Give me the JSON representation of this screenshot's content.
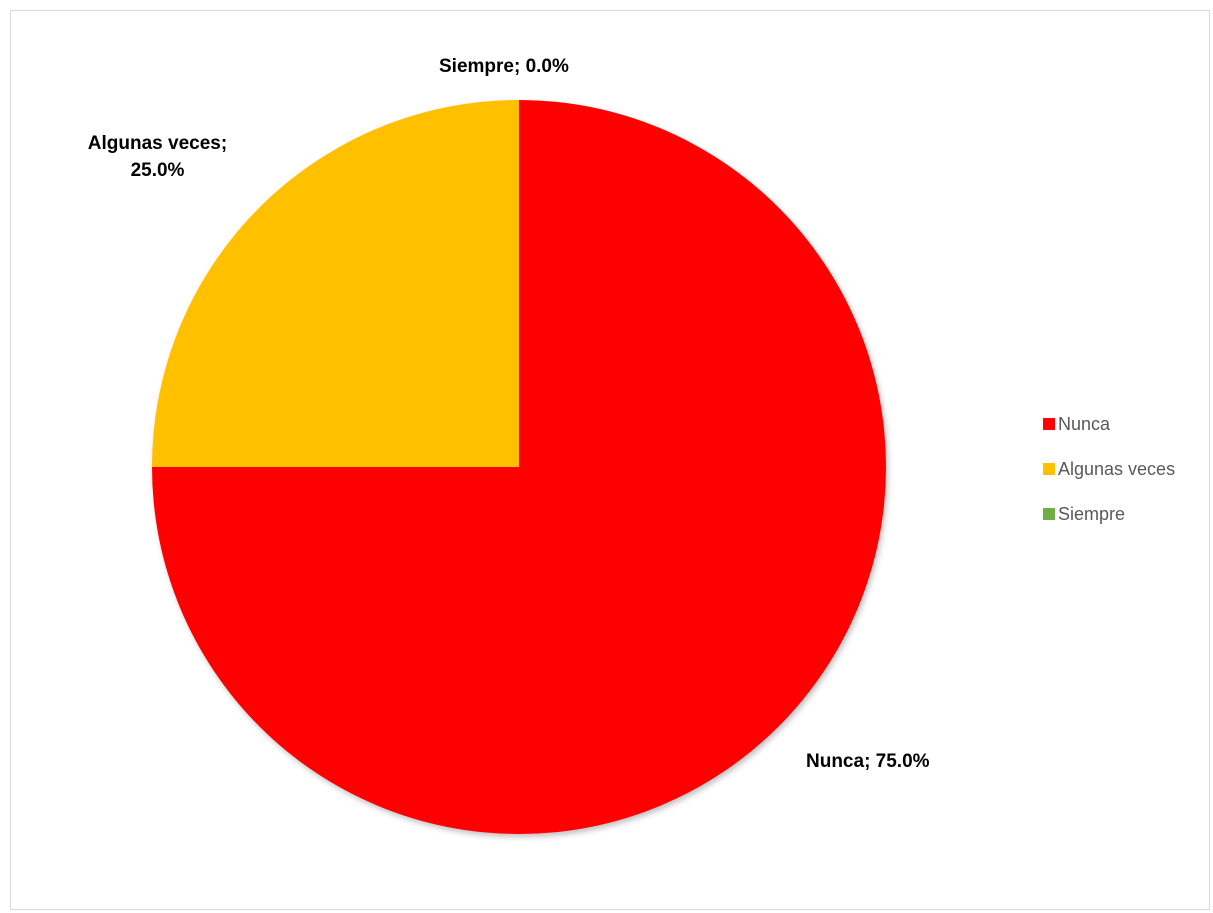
{
  "chart_data": {
    "type": "pie",
    "title": "",
    "categories": [
      "Nunca",
      "Algunas veces",
      "Siempre"
    ],
    "values": [
      75.0,
      25.0,
      0.0
    ],
    "colors": [
      "#ff0000",
      "#ffc000",
      "#70ad47"
    ],
    "start_angle_deg": 0,
    "direction": "clockwise",
    "legend_position": "right",
    "data_labels": [
      {
        "lines": [
          "Nunca; 75.0%"
        ]
      },
      {
        "lines": [
          "Algunas veces;",
          "25.0%"
        ]
      },
      {
        "lines": [
          "Siempre; 0.0%"
        ]
      }
    ],
    "legend": [
      "Nunca",
      "Algunas veces",
      "Siempre"
    ]
  }
}
